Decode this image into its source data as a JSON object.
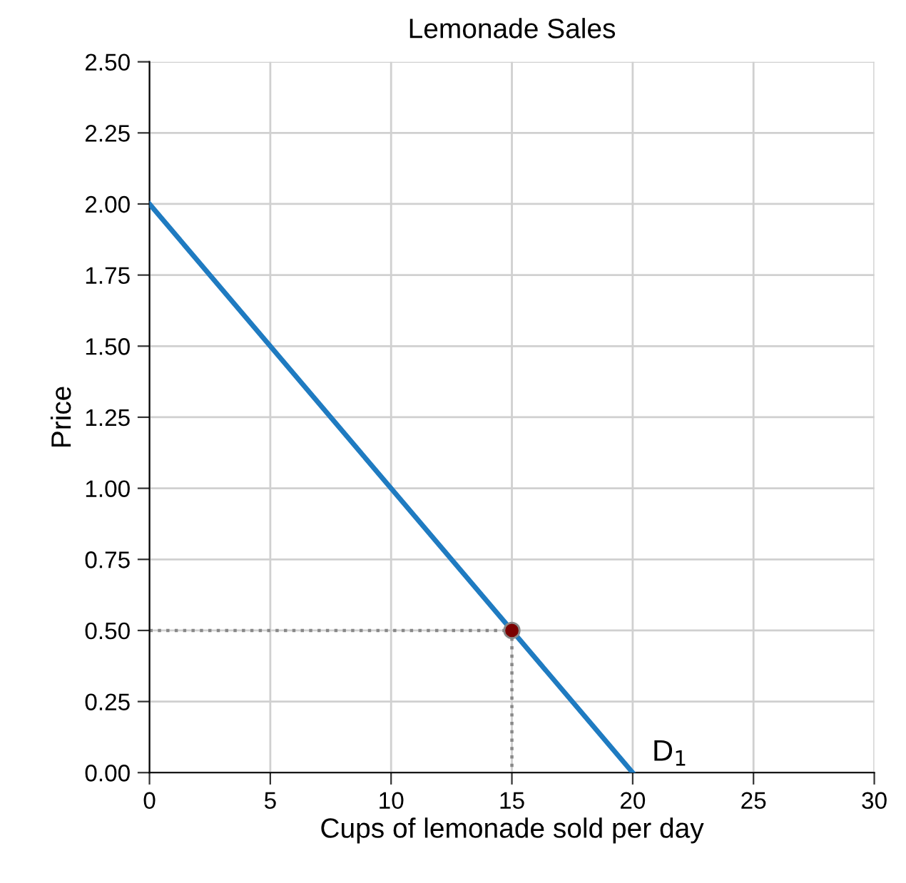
{
  "chart_data": {
    "type": "line",
    "title": "Lemonade Sales",
    "xlabel": "Cups of lemonade sold per day",
    "ylabel": "Price",
    "series": [
      {
        "color": "#888888",
        "line_style": "dotted",
        "x": [
          0,
          15,
          15
        ],
        "values": [
          0.5,
          0.5,
          0
        ]
      },
      {
        "name": "D$_{1}$",
        "color": "#1f7bc1",
        "x": [
          0,
          20
        ],
        "values": [
          2,
          0
        ]
      },
      {
        "type": "scatter",
        "color": "#7b0000",
        "marker": "circle",
        "x": [
          15
        ],
        "values": [
          0.5
        ]
      }
    ],
    "xlim": [
      0,
      30
    ],
    "xticks": [
      0,
      5,
      10,
      15,
      20,
      25,
      30
    ],
    "ylim": [
      0,
      2.5
    ],
    "yticks": [
      {
        "value": 0,
        "label": "0.00"
      },
      {
        "value": 0.25,
        "label": "0.25"
      },
      {
        "value": 0.5,
        "label": "0.50"
      },
      {
        "value": 0.75,
        "label": "0.75"
      },
      {
        "value": 1,
        "label": "1.00"
      },
      {
        "value": 1.25,
        "label": "1.25"
      },
      {
        "value": 1.5,
        "label": "1.50"
      },
      {
        "value": 1.75,
        "label": "1.75"
      },
      {
        "value": 2,
        "label": "2.00"
      },
      {
        "value": 2.25,
        "label": "2.25"
      },
      {
        "value": 2.5,
        "label": "2.50"
      }
    ],
    "grid": true
  }
}
